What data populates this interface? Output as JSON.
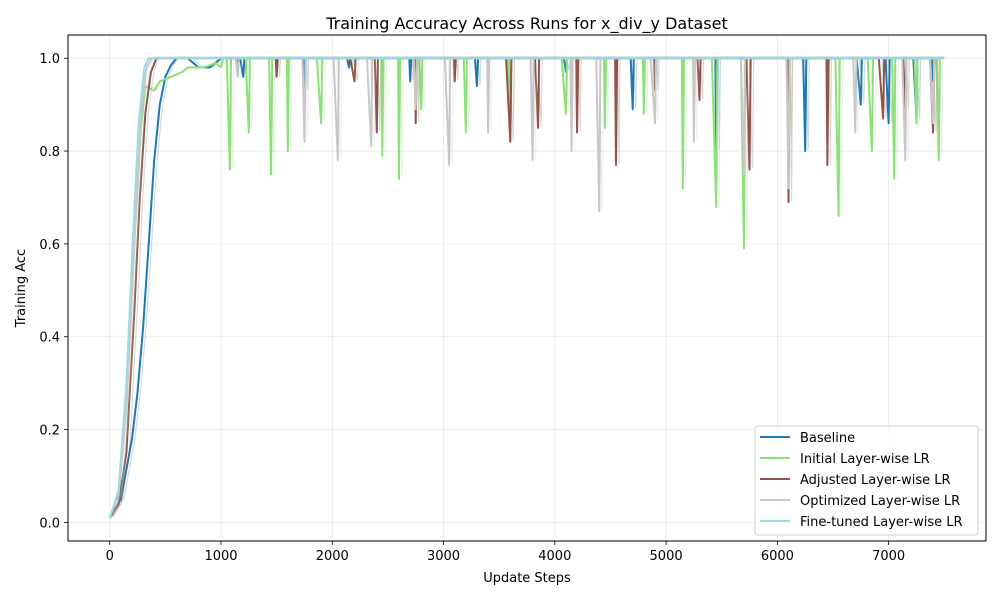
{
  "chart_data": {
    "type": "line",
    "title": "Training Accuracy Across Runs for x_div_y Dataset",
    "xlabel": "Update Steps",
    "ylabel": "Training Acc",
    "xlim": [
      -375,
      7875
    ],
    "ylim": [
      -0.04,
      1.05
    ],
    "xticks": [
      0,
      1000,
      2000,
      3000,
      4000,
      5000,
      6000,
      7000
    ],
    "yticks": [
      0.0,
      0.2,
      0.4,
      0.6,
      0.8,
      1.0
    ],
    "xtick_labels": [
      "0",
      "1000",
      "2000",
      "3000",
      "4000",
      "5000",
      "6000",
      "7000"
    ],
    "ytick_labels": [
      "0.0",
      "0.2",
      "0.4",
      "0.6",
      "0.8",
      "1.0"
    ],
    "grid": true,
    "legend_position": "bottom-right",
    "series": [
      {
        "name": "Baseline",
        "color": "#1f77b4",
        "ramp": [
          [
            0,
            0.01
          ],
          [
            100,
            0.05
          ],
          [
            200,
            0.18
          ],
          [
            250,
            0.28
          ],
          [
            300,
            0.42
          ],
          [
            350,
            0.6
          ],
          [
            400,
            0.78
          ],
          [
            450,
            0.9
          ],
          [
            500,
            0.96
          ],
          [
            550,
            0.985
          ],
          [
            600,
            1.0
          ],
          [
            700,
            1.0
          ],
          [
            800,
            0.98
          ],
          [
            900,
            0.98
          ],
          [
            1000,
            1.0
          ]
        ],
        "dips": [
          [
            1200,
            0.96
          ],
          [
            1750,
            0.93
          ],
          [
            2150,
            0.98
          ],
          [
            2700,
            0.95
          ],
          [
            3300,
            0.94
          ],
          [
            4100,
            0.97
          ],
          [
            4700,
            0.89
          ],
          [
            5450,
            0.8
          ],
          [
            6250,
            0.8
          ],
          [
            6750,
            0.9
          ],
          [
            7000,
            0.86
          ],
          [
            7250,
            0.87
          ],
          [
            7400,
            0.95
          ]
        ]
      },
      {
        "name": "Initial Layer-wise LR",
        "color": "#8ede7a",
        "ramp": [
          [
            0,
            0.01
          ],
          [
            80,
            0.06
          ],
          [
            150,
            0.25
          ],
          [
            220,
            0.6
          ],
          [
            280,
            0.85
          ],
          [
            320,
            0.94
          ],
          [
            400,
            0.93
          ],
          [
            450,
            0.95
          ],
          [
            550,
            0.96
          ],
          [
            650,
            0.97
          ],
          [
            700,
            0.98
          ],
          [
            850,
            0.98
          ],
          [
            950,
            0.99
          ],
          [
            1000,
            0.98
          ]
        ],
        "dips": [
          [
            1080,
            0.76
          ],
          [
            1250,
            0.84
          ],
          [
            1450,
            0.75
          ],
          [
            1600,
            0.8
          ],
          [
            1900,
            0.86
          ],
          [
            2450,
            0.79
          ],
          [
            2600,
            0.74
          ],
          [
            2800,
            0.89
          ],
          [
            3200,
            0.84
          ],
          [
            3600,
            0.87
          ],
          [
            4100,
            0.88
          ],
          [
            4450,
            0.85
          ],
          [
            4800,
            0.88
          ],
          [
            5150,
            0.72
          ],
          [
            5450,
            0.68
          ],
          [
            5700,
            0.59
          ],
          [
            6100,
            0.82
          ],
          [
            6550,
            0.66
          ],
          [
            6850,
            0.8
          ],
          [
            7050,
            0.74
          ],
          [
            7250,
            0.86
          ],
          [
            7450,
            0.78
          ]
        ]
      },
      {
        "name": "Adjusted Layer-wise LR",
        "color": "#8c564b",
        "ramp": [
          [
            0,
            0.01
          ],
          [
            80,
            0.04
          ],
          [
            150,
            0.15
          ],
          [
            220,
            0.45
          ],
          [
            270,
            0.7
          ],
          [
            320,
            0.88
          ],
          [
            370,
            0.97
          ],
          [
            420,
            1.0
          ],
          [
            1000,
            1.0
          ]
        ],
        "dips": [
          [
            1150,
            0.99
          ],
          [
            1500,
            0.96
          ],
          [
            2200,
            0.95
          ],
          [
            2400,
            0.84
          ],
          [
            2750,
            0.86
          ],
          [
            3100,
            0.95
          ],
          [
            3600,
            0.82
          ],
          [
            3850,
            0.85
          ],
          [
            4200,
            0.84
          ],
          [
            4550,
            0.77
          ],
          [
            4900,
            0.93
          ],
          [
            5300,
            0.91
          ],
          [
            5750,
            0.76
          ],
          [
            6100,
            0.69
          ],
          [
            6450,
            0.77
          ],
          [
            6950,
            0.87
          ],
          [
            7150,
            0.89
          ],
          [
            7400,
            0.84
          ]
        ]
      },
      {
        "name": "Optimized Layer-wise LR",
        "color": "#c7c7c7",
        "ramp": [
          [
            0,
            0.01
          ],
          [
            80,
            0.06
          ],
          [
            150,
            0.25
          ],
          [
            220,
            0.6
          ],
          [
            280,
            0.88
          ],
          [
            330,
            0.98
          ],
          [
            380,
            1.0
          ],
          [
            1000,
            1.0
          ]
        ],
        "dips": [
          [
            1150,
            0.96
          ],
          [
            1750,
            0.82
          ],
          [
            2050,
            0.78
          ],
          [
            2350,
            0.81
          ],
          [
            2750,
            0.89
          ],
          [
            3050,
            0.77
          ],
          [
            3400,
            0.84
          ],
          [
            3800,
            0.78
          ],
          [
            4150,
            0.8
          ],
          [
            4400,
            0.67
          ],
          [
            4900,
            0.86
          ],
          [
            5250,
            0.82
          ],
          [
            5700,
            0.75
          ],
          [
            6100,
            0.72
          ],
          [
            6700,
            0.84
          ],
          [
            7150,
            0.78
          ],
          [
            7400,
            0.86
          ]
        ]
      },
      {
        "name": "Fine-tuned Layer-wise LR",
        "color": "#9edae5",
        "ramp": [
          [
            0,
            0.01
          ],
          [
            80,
            0.07
          ],
          [
            150,
            0.3
          ],
          [
            210,
            0.62
          ],
          [
            260,
            0.86
          ],
          [
            310,
            0.98
          ],
          [
            350,
            1.0
          ],
          [
            1000,
            1.0
          ]
        ],
        "dips": [
          [
            900,
            0.94
          ],
          [
            1100,
            0.97
          ],
          [
            1400,
            0.95
          ],
          [
            1820,
            0.59
          ],
          [
            2050,
            0.83
          ],
          [
            2350,
            0.93
          ],
          [
            2850,
            0.71
          ],
          [
            3250,
            0.79
          ],
          [
            3650,
            0.87
          ],
          [
            4300,
            0.83
          ],
          [
            4650,
            0.8
          ],
          [
            4950,
            0.75
          ],
          [
            5400,
            0.9
          ],
          [
            5950,
            0.84
          ],
          [
            6500,
            0.92
          ],
          [
            7150,
            0.86
          ],
          [
            7500,
            0.85
          ]
        ]
      }
    ]
  }
}
